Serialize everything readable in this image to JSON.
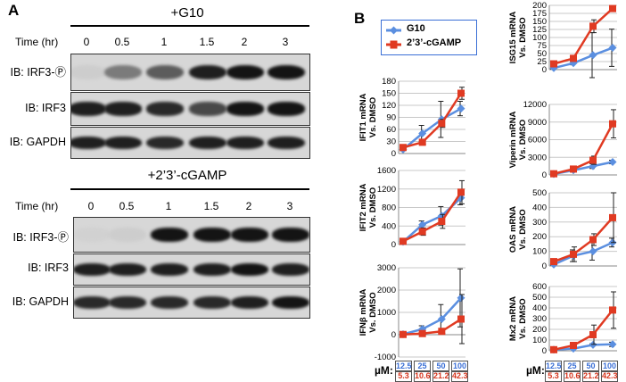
{
  "panel_a": {
    "letter": "A",
    "g10": {
      "condition": "+G10",
      "time_label": "Time (hr)",
      "times": [
        "0",
        "0.5",
        "1",
        "1.5",
        "2",
        "3"
      ],
      "blots": [
        {
          "label": "IB: IRF3-Ⓟ",
          "intensity": [
            0.05,
            0.45,
            0.6,
            0.9,
            0.95,
            0.95
          ]
        },
        {
          "label": "IB: IRF3",
          "intensity": [
            0.9,
            0.9,
            0.85,
            0.7,
            0.95,
            0.95
          ]
        },
        {
          "label": "IB: GAPDH",
          "intensity": [
            0.9,
            0.9,
            0.85,
            0.9,
            0.9,
            0.9
          ]
        }
      ]
    },
    "cgamp": {
      "condition": "+2’3’-cGAMP",
      "time_label": "Time (hr)",
      "times": [
        "0",
        "0.5",
        "1",
        "1.5",
        "2",
        "3"
      ],
      "blots": [
        {
          "label": "IB: IRF3-Ⓟ",
          "intensity": [
            0.03,
            0.05,
            0.95,
            0.95,
            0.95,
            0.95
          ]
        },
        {
          "label": "IB: IRF3",
          "intensity": [
            0.9,
            0.9,
            0.9,
            0.9,
            0.95,
            0.9
          ]
        },
        {
          "label": "IB: GAPDH",
          "intensity": [
            0.85,
            0.85,
            0.85,
            0.85,
            0.9,
            0.95
          ]
        }
      ]
    }
  },
  "panel_b": {
    "letter": "B",
    "um_label": "µM:",
    "g10_doses": [
      "12.5",
      "25",
      "50",
      "100"
    ],
    "cgamp_doses": [
      "5.3",
      "10.6",
      "21.2",
      "42.3"
    ],
    "colors": {
      "g10": "#5b8fe0",
      "cgamp": "#e03a22"
    }
  },
  "chart_data": [
    {
      "type": "line",
      "ylabel": "IFIT1 mRNA\nVs. DMSO",
      "ylim": [
        0,
        180
      ],
      "yticks": [
        0,
        30,
        60,
        90,
        120,
        150,
        180
      ],
      "series": [
        {
          "name": "G10",
          "values": [
            10,
            50,
            85,
            112
          ],
          "err": [
            3,
            20,
            45,
            18
          ]
        },
        {
          "name": "2’3’-cGAMP",
          "values": [
            15,
            28,
            75,
            150
          ],
          "err": [
            3,
            5,
            10,
            15
          ]
        }
      ]
    },
    {
      "type": "line",
      "ylabel": "IFIT2 mRNA\nVs. DMSO",
      "ylim": [
        0,
        1600
      ],
      "yticks": [
        0,
        400,
        800,
        1200,
        1600
      ],
      "series": [
        {
          "name": "G10",
          "values": [
            60,
            430,
            620,
            1010
          ],
          "err": [
            20,
            80,
            200,
            150
          ]
        },
        {
          "name": "2’3’-cGAMP",
          "values": [
            70,
            280,
            500,
            1130
          ],
          "err": [
            20,
            80,
            150,
            250
          ]
        }
      ]
    },
    {
      "type": "line",
      "ylabel": "IFNβ mRNA\nVs. DMSO",
      "ylim": [
        -1000,
        3000
      ],
      "yticks": [
        -1000,
        0,
        1000,
        2000,
        3000
      ],
      "series": [
        {
          "name": "G10",
          "values": [
            20,
            250,
            700,
            1650
          ],
          "err": [
            20,
            150,
            650,
            1300
          ]
        },
        {
          "name": "2’3’-cGAMP",
          "values": [
            10,
            50,
            150,
            700
          ],
          "err": [
            5,
            30,
            100,
            1100
          ]
        }
      ]
    },
    {
      "type": "line",
      "ylabel": "ISG15 mRNA\nVs. DMSO",
      "ylim": [
        0,
        200
      ],
      "yticks": [
        0,
        25,
        50,
        75,
        100,
        125,
        150,
        175,
        200
      ],
      "series": [
        {
          "name": "G10",
          "values": [
            5,
            20,
            45,
            68
          ],
          "err": [
            3,
            5,
            70,
            58
          ]
        },
        {
          "name": "2’3’-cGAMP",
          "values": [
            18,
            35,
            135,
            190
          ],
          "err": [
            3,
            5,
            20,
            5
          ]
        }
      ]
    },
    {
      "type": "line",
      "ylabel": "Viperin mRNA\nVs. DMSO",
      "ylim": [
        0,
        12000
      ],
      "yticks": [
        0,
        3000,
        6000,
        9000,
        12000
      ],
      "series": [
        {
          "name": "G10",
          "values": [
            150,
            800,
            1500,
            2200
          ],
          "err": [
            50,
            300,
            400,
            300
          ]
        },
        {
          "name": "2’3’-cGAMP",
          "values": [
            200,
            1000,
            2500,
            8700
          ],
          "err": [
            50,
            300,
            700,
            2400
          ]
        }
      ]
    },
    {
      "type": "line",
      "ylabel": "OAS mRNA\nVs. DMSO",
      "ylim": [
        0,
        500
      ],
      "yticks": [
        0,
        100,
        200,
        300,
        400,
        500
      ],
      "series": [
        {
          "name": "G10",
          "values": [
            10,
            70,
            100,
            160
          ],
          "err": [
            5,
            40,
            60,
            30
          ]
        },
        {
          "name": "2’3’-cGAMP",
          "values": [
            30,
            80,
            180,
            330
          ],
          "err": [
            10,
            50,
            40,
            170
          ]
        }
      ]
    },
    {
      "type": "line",
      "ylabel": "Mx2 mRNA\nVs. DMSO",
      "ylim": [
        0,
        600
      ],
      "yticks": [
        0,
        100,
        200,
        300,
        400,
        500,
        600
      ],
      "series": [
        {
          "name": "G10",
          "values": [
            10,
            20,
            55,
            60
          ],
          "err": [
            5,
            5,
            10,
            20
          ]
        },
        {
          "name": "2’3’-cGAMP",
          "values": [
            10,
            50,
            150,
            380
          ],
          "err": [
            5,
            20,
            90,
            170
          ]
        }
      ]
    }
  ],
  "legend": {
    "items": [
      "G10",
      "2’3’-cGAMP"
    ]
  }
}
